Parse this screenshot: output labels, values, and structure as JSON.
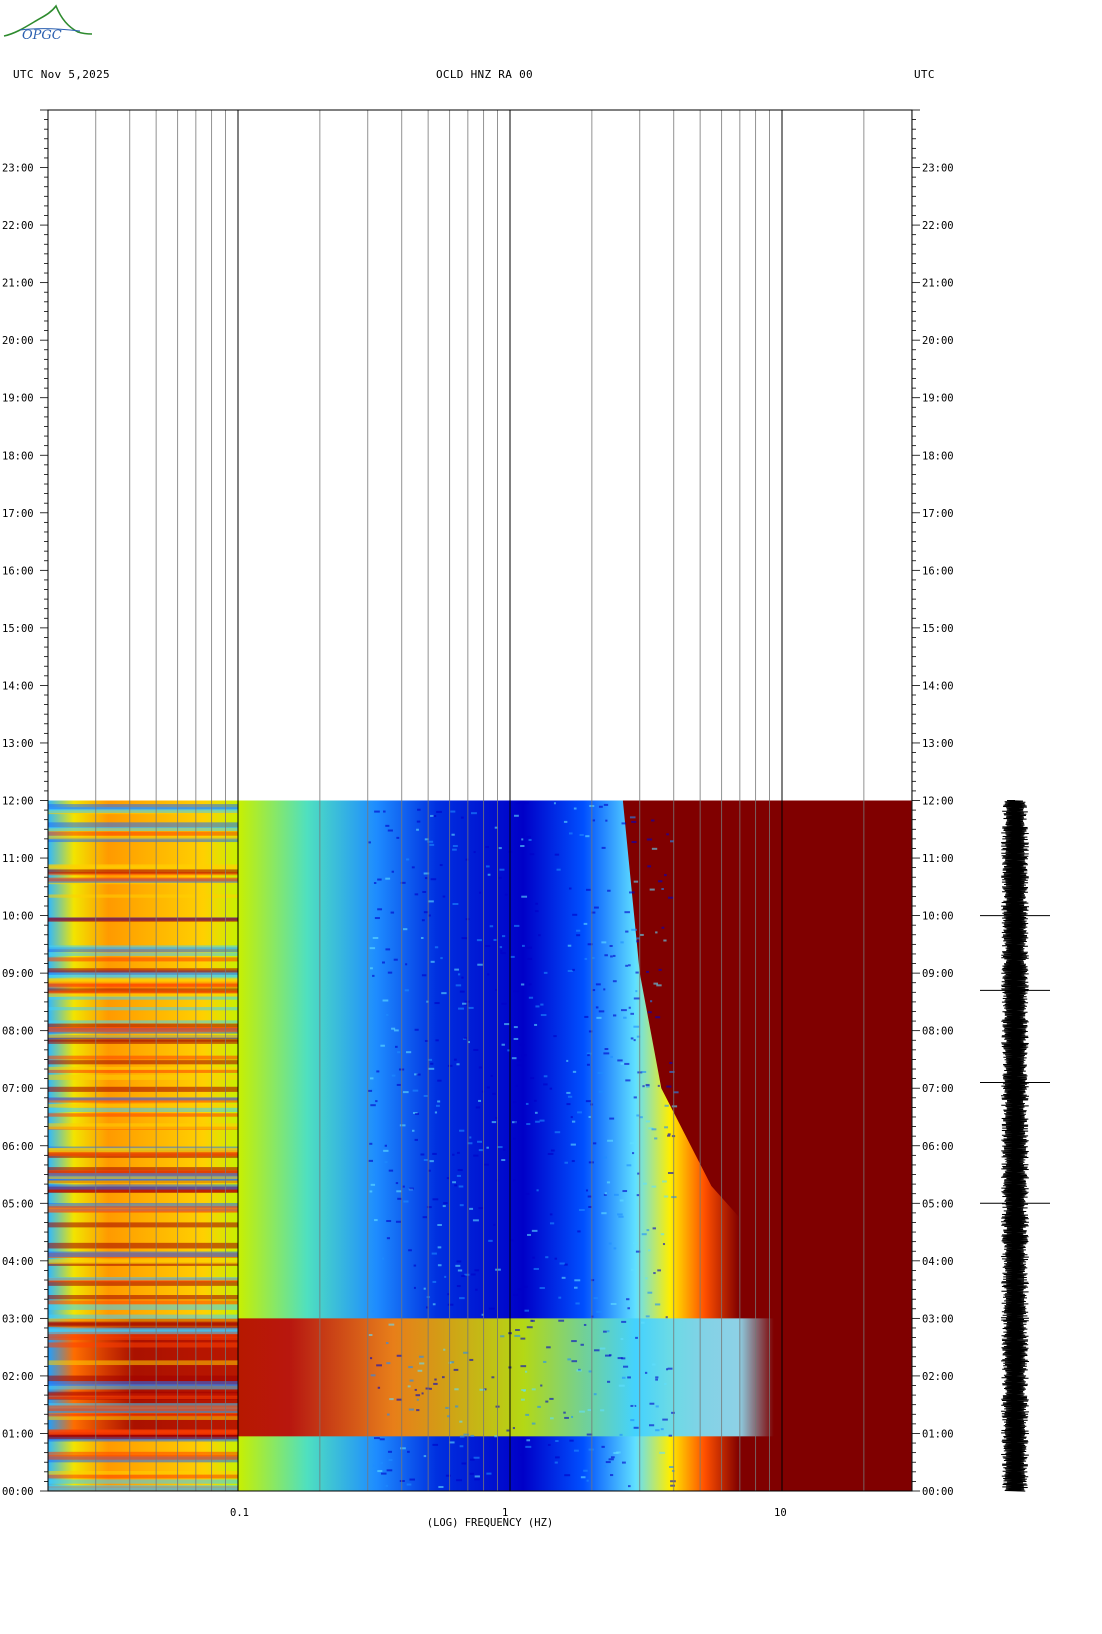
{
  "header": {
    "logo_text": "OPGC",
    "left": "UTC  Nov 5,2025",
    "center": "OCLD HNZ RA 00",
    "right": "UTC"
  },
  "colors": {
    "logo_green": "#2e8b2e",
    "logo_blue": "#2a5fb0",
    "spectrogram_low": "#0000c8",
    "spectrogram_high": "#800000"
  },
  "chart_data": {
    "type": "heatmap",
    "title": "OCLD HNZ RA 00",
    "xlabel": "(LOG) FREQUENCY (HZ)",
    "ylabel": "UTC",
    "x_scale": "log",
    "xlim": [
      0.02,
      30
    ],
    "x_ticks": [
      {
        "value": 0.1,
        "label": "0.1"
      },
      {
        "value": 1,
        "label": "1"
      },
      {
        "value": 10,
        "label": "10"
      }
    ],
    "ylim_hours": [
      0,
      24
    ],
    "data_end_hour": 12,
    "y_ticks": [
      "00:00",
      "01:00",
      "02:00",
      "03:00",
      "04:00",
      "05:00",
      "06:00",
      "07:00",
      "08:00",
      "09:00",
      "10:00",
      "11:00",
      "12:00",
      "13:00",
      "14:00",
      "15:00",
      "16:00",
      "17:00",
      "18:00",
      "19:00",
      "20:00",
      "21:00",
      "22:00",
      "23:00"
    ],
    "grid": "vertical log-frequency lines",
    "colormap": "jet (blue = low power, dark red = high power)",
    "features": [
      {
        "freq_hz": "0.02-0.07",
        "hours": "0-12",
        "level": "high (yellow/red)"
      },
      {
        "freq_hz": "0.1-0.3",
        "hours": "1-3",
        "level": "very high (red)"
      },
      {
        "freq_hz": "0.4-2",
        "hours": "3.5-11",
        "level": "low (blue)"
      },
      {
        "freq_hz": ">4-10",
        "hours": "0-12",
        "level": "saturated (dark red)"
      }
    ]
  },
  "seismogram": {
    "type": "trace",
    "hours": [
      0,
      12
    ],
    "spikes_hours": [
      10.0,
      8.7,
      7.1,
      5.0
    ]
  }
}
